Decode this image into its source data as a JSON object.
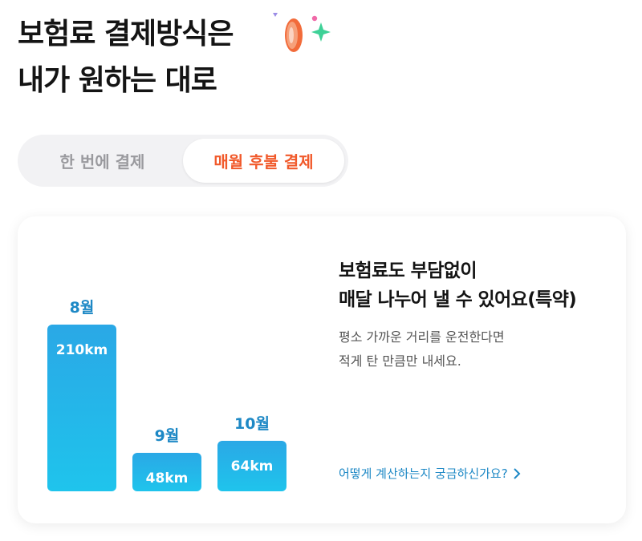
{
  "headline": {
    "line1": "보험료 결제방식은",
    "line2": "내가 원하는 대로"
  },
  "toggle": {
    "options": [
      {
        "label": "한 번에 결제",
        "active": false
      },
      {
        "label": "매월 후불 결제",
        "active": true
      }
    ]
  },
  "card": {
    "title_line1": "보험료도 부담없이",
    "title_line2": "매달 나누어 낼 수 있어요(특약)",
    "desc_line1": "평소 가까운 거리를 운전한다면",
    "desc_line2": "적게 탄 만큼만 내세요.",
    "link_label": "어떻게 계산하는지 궁금하신가요?"
  },
  "chart_data": {
    "type": "bar",
    "categories": [
      "8월",
      "9월",
      "10월"
    ],
    "values": [
      210,
      48,
      64
    ],
    "value_labels": [
      "210km",
      "48km",
      "64km"
    ],
    "unit": "km",
    "ylim": [
      0,
      210
    ],
    "grid": false,
    "bar_color": "#1fb4ea",
    "label_color": "#1d88c5"
  },
  "colors": {
    "accent": "#f15a2b",
    "link": "#1d88c5",
    "toggle_bg": "#f2f2f4"
  },
  "icons": {
    "decoration": "coin-sparkle-icon",
    "link_arrow": "chevron-right-icon"
  }
}
